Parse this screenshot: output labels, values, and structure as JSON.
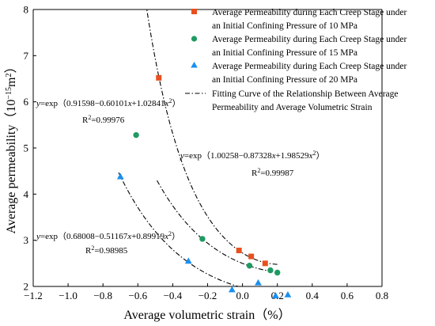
{
  "chart_data": {
    "type": "scatter",
    "xlabel": "Average volumetric strain（%）",
    "ylabel": "Average permeability（10",
    "ylabel_exp": "−15",
    "ylabel_unit": "m",
    "ylabel_unit_exp": "2",
    "ylabel_close": "）",
    "xlim": [
      -1.2,
      0.8
    ],
    "ylim": [
      2,
      8
    ],
    "xticks": [
      "−1.2",
      "−1.0",
      "−0.8",
      "−0.6",
      "−0.4",
      "−0.2",
      "0.0",
      "0.2",
      "0.4",
      "0.6",
      "0.8"
    ],
    "xtick_values": [
      -1.2,
      -1.0,
      -0.8,
      -0.6,
      -0.4,
      -0.2,
      0.0,
      0.2,
      0.4,
      0.6,
      0.8
    ],
    "yticks": [
      "2",
      "3",
      "4",
      "5",
      "6",
      "7",
      "8"
    ],
    "ytick_values": [
      2,
      3,
      4,
      5,
      6,
      7,
      8
    ],
    "legend_position": "top-right",
    "series": [
      {
        "name_line1": "Average Permeability during Each Creep Stage under",
        "name_line2": "an Initial Confining Pressure of 10 MPa",
        "marker": "square",
        "color": "#e8501e",
        "x": [
          -0.48,
          -0.02,
          0.05,
          0.13
        ],
        "y": [
          6.52,
          2.78,
          2.65,
          2.5
        ]
      },
      {
        "name_line1": "Average Permeability during Each Creep Stage under",
        "name_line2": "an Initial Confining Pressure of 15 MPa",
        "marker": "circle",
        "color": "#1f9a62",
        "x": [
          -0.61,
          -0.23,
          0.04,
          0.16,
          0.2
        ],
        "y": [
          5.28,
          3.03,
          2.45,
          2.35,
          2.3
        ]
      },
      {
        "name_line1": "Average Permeability during Each Creep Stage under",
        "name_line2": "an Initial Confining Pressure of 20 MPa",
        "marker": "triangle",
        "color": "#1a8ff0",
        "x": [
          -0.7,
          -0.31,
          -0.06,
          0.09,
          0.19,
          0.26
        ],
        "y": [
          4.38,
          2.55,
          1.93,
          2.08,
          1.8,
          1.82
        ]
      }
    ],
    "fit_legend_line1": "Fitting Curve of the Relationship Between Average",
    "fit_legend_line2": "Permeability and Average Volumetric Strain",
    "fits": [
      {
        "a": 0.91598,
        "b": -0.60101,
        "c": 1.02841,
        "xrange": [
          -0.49,
          0.14
        ],
        "eq_prefix": "y",
        "eq_body1": "=exp（0.91598−0.60101",
        "eq_var1": "x",
        "eq_body2": "+1.02841",
        "eq_var2": "x",
        "eq_sup": "2",
        "eq_close": "）",
        "r2_label": "R",
        "r2_sup": "2",
        "r2_value": "=0.99976"
      },
      {
        "a": 1.00258,
        "b": -0.87328,
        "c": 1.98529,
        "xrange": [
          -0.62,
          0.21
        ],
        "eq_prefix": "y",
        "eq_body1": "=exp（1.00258−0.87328",
        "eq_var1": "x",
        "eq_body2": "+1.98529",
        "eq_var2": "x",
        "eq_sup": "2",
        "eq_close": "）",
        "r2_label": "R",
        "r2_sup": "2",
        "r2_value": "=0.99987"
      },
      {
        "a": 0.68008,
        "b": -0.51167,
        "c": 0.89919,
        "xrange": [
          -0.71,
          0.27
        ],
        "eq_prefix": "y",
        "eq_body1": "=exp（0.68008−0.51167",
        "eq_var1": "x",
        "eq_body2": "+0.89919",
        "eq_var2": "x",
        "eq_sup": "2",
        "eq_close": "）",
        "r2_label": "R",
        "r2_sup": "2",
        "r2_value": "=0.98985"
      }
    ]
  }
}
